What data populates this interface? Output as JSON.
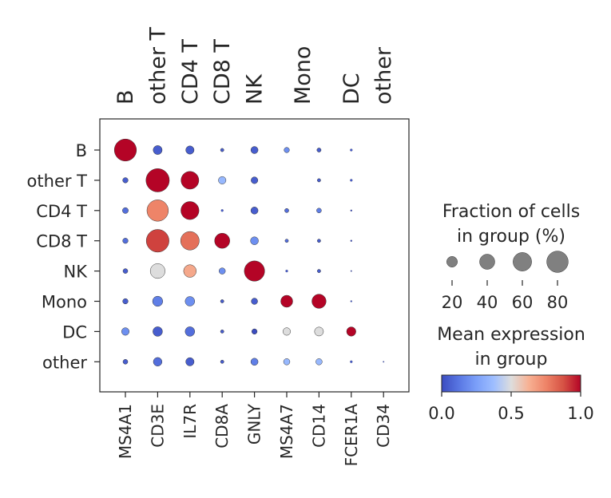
{
  "chart_data": {
    "type": "dotplot",
    "groups": [
      "B",
      "other T",
      "CD4 T",
      "CD8 T",
      "NK",
      "Mono",
      "DC",
      "other"
    ],
    "genes": [
      "MS4A1",
      "CD3E",
      "IL7R",
      "CD8A",
      "GNLY",
      "MS4A7",
      "CD14",
      "FCER1A",
      "CD34"
    ],
    "group_brackets": [
      {
        "label": "B",
        "gene_index": 0
      },
      {
        "label": "other T",
        "gene_index": 1
      },
      {
        "label": "CD4 T",
        "gene_index": 2
      },
      {
        "label": "CD8 T",
        "gene_index": 3
      },
      {
        "label": "NK",
        "gene_index": 4
      },
      {
        "label": "Mono",
        "gene_index": 5.5
      },
      {
        "label": "DC",
        "gene_index": 7
      },
      {
        "label": "other",
        "gene_index": 8
      }
    ],
    "fraction_pct": [
      [
        85,
        14,
        12,
        2,
        9,
        5,
        3,
        1,
        0
      ],
      [
        5,
        95,
        55,
        10,
        8,
        0,
        2,
        1,
        0
      ],
      [
        6,
        80,
        57,
        1,
        9,
        3,
        4,
        0.5,
        0
      ],
      [
        5,
        90,
        60,
        40,
        11,
        2,
        2,
        0.5,
        0
      ],
      [
        4,
        38,
        28,
        7,
        72,
        1,
        2,
        0.3,
        0
      ],
      [
        5,
        18,
        16,
        2,
        7,
        25,
        35,
        0.5,
        0
      ],
      [
        10,
        16,
        16,
        2,
        5,
        10,
        14,
        15,
        0
      ],
      [
        4,
        13,
        12,
        2,
        9,
        7,
        7,
        1,
        0.3
      ]
    ],
    "mean_expression": [
      [
        1.0,
        0.05,
        0.05,
        0.05,
        0.05,
        0.2,
        0.05,
        0.05,
        0.0
      ],
      [
        0.05,
        1.0,
        1.0,
        0.35,
        0.05,
        0.0,
        0.05,
        0.05,
        0.0
      ],
      [
        0.1,
        0.75,
        1.0,
        0.05,
        0.05,
        0.1,
        0.15,
        0.0,
        0.0
      ],
      [
        0.1,
        0.9,
        0.8,
        1.0,
        0.2,
        0.1,
        0.05,
        0.0,
        0.0
      ],
      [
        0.05,
        0.5,
        0.65,
        0.2,
        1.0,
        0.05,
        0.05,
        0.0,
        0.0
      ],
      [
        0.05,
        0.15,
        0.2,
        0.05,
        0.05,
        1.0,
        1.0,
        0.05,
        0.0
      ],
      [
        0.2,
        0.05,
        0.1,
        0.05,
        0.0,
        0.5,
        0.5,
        1.0,
        0.0
      ],
      [
        0.05,
        0.1,
        0.05,
        0.05,
        0.15,
        0.35,
        0.35,
        0.05,
        0.05
      ]
    ],
    "size_legend": {
      "title_line1": "Fraction of cells",
      "title_line2": "in group (%)",
      "values": [
        20,
        40,
        60,
        80
      ],
      "labels": [
        "20",
        "40",
        "60",
        "80"
      ]
    },
    "color_legend": {
      "title_line1": "Mean expression",
      "title_line2": "in group",
      "colormap": "coolwarm",
      "range": [
        0,
        1
      ],
      "tick_values": [
        0,
        0.5,
        1
      ],
      "tick_labels": [
        "0.0",
        "0.5",
        "1.0"
      ]
    }
  },
  "colors": {
    "cool": "#3b4cc0",
    "neutral": "#dddddd",
    "warm": "#b40426",
    "axis": "#262626",
    "size_legend_fill": "#808080"
  }
}
